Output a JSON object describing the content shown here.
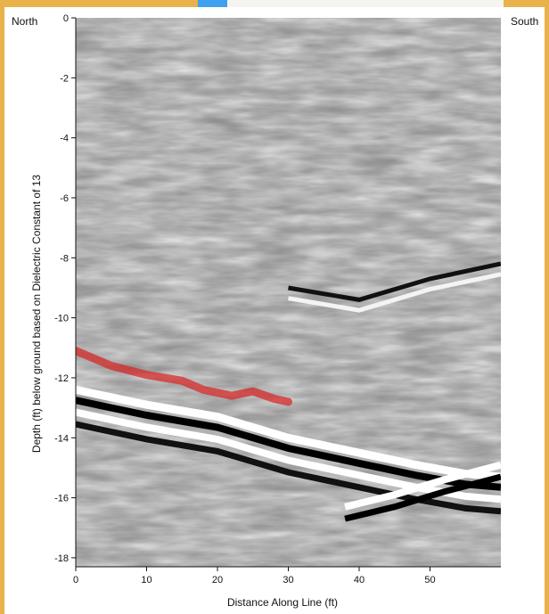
{
  "chart_data": {
    "type": "heatmap",
    "title": "",
    "left_label": "North",
    "right_label": "South",
    "xlabel": "Distance Along Line (ft)",
    "ylabel": "Depth (ft) below ground based on Dielectric Constant of 13",
    "xlim": [
      0,
      60
    ],
    "ylim": [
      -18.3,
      0
    ],
    "x_ticks": [
      0,
      10,
      20,
      30,
      40,
      50
    ],
    "y_ticks": [
      0,
      -2,
      -4,
      -6,
      -8,
      -10,
      -12,
      -14,
      -16,
      -18
    ],
    "colormap": "grayscale",
    "grid": false,
    "highlight": {
      "color": "#d42a2a",
      "x": [
        0,
        5,
        10,
        15,
        18,
        22,
        25,
        28,
        30
      ],
      "y": [
        -11.1,
        -11.6,
        -11.9,
        -12.1,
        -12.4,
        -12.6,
        -12.45,
        -12.7,
        -12.8
      ]
    }
  }
}
